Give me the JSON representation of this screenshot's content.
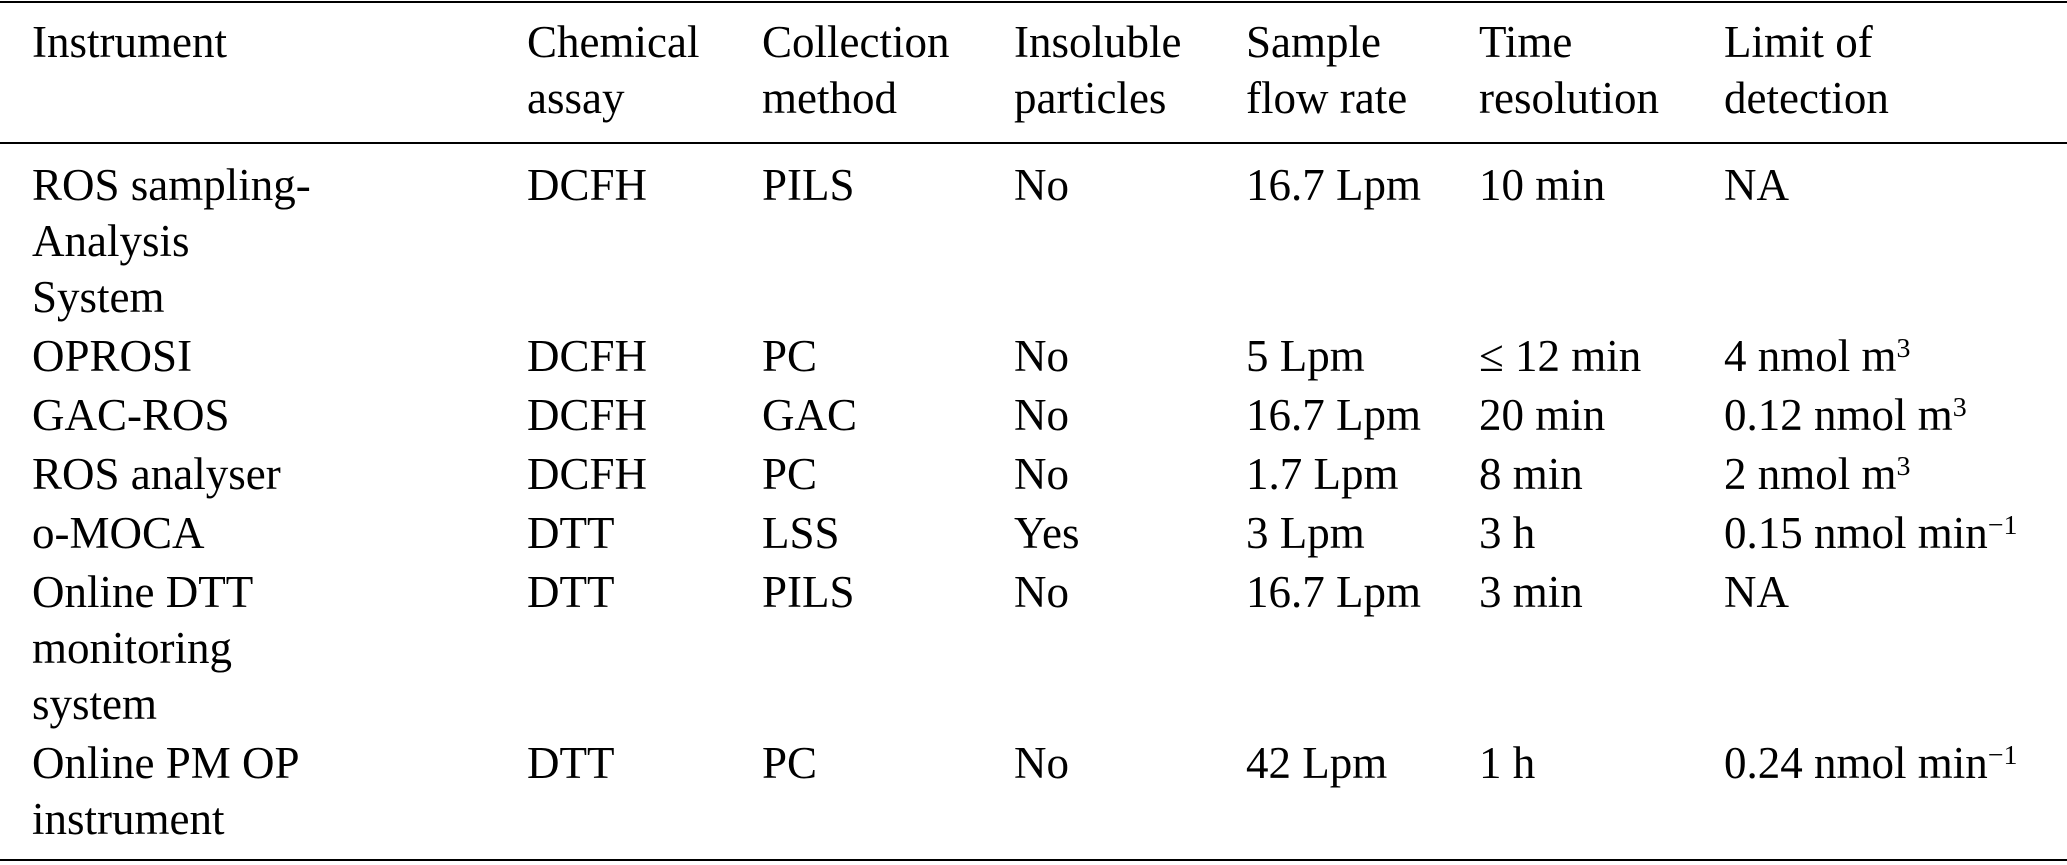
{
  "table": {
    "columns": [
      "Instrument",
      "Chemical\nassay",
      "Collection\nmethod",
      "Insoluble\nparticles",
      "Sample\nflow rate",
      "Time\nresolution",
      "Limit of\ndetection"
    ],
    "rows": [
      {
        "instrument": "ROS sampling-\nAnalysis\nSystem",
        "assay": "DCFH",
        "collection": "PILS",
        "insoluble": "No",
        "flow": "16.7 Lpm",
        "time": "10 min",
        "lod": "NA"
      },
      {
        "instrument": "OPROSI",
        "assay": "DCFH",
        "collection": "PC",
        "insoluble": "No",
        "flow": "5 Lpm",
        "time": "≤ 12 min",
        "lod": "4 nmol m",
        "lod_sup": "3"
      },
      {
        "instrument": "GAC-ROS",
        "assay": "DCFH",
        "collection": "GAC",
        "insoluble": "No",
        "flow": "16.7 Lpm",
        "time": "20 min",
        "lod": "0.12 nmol m",
        "lod_sup": "3"
      },
      {
        "instrument": "ROS analyser",
        "assay": "DCFH",
        "collection": "PC",
        "insoluble": "No",
        "flow": "1.7 Lpm",
        "time": "8 min",
        "lod": "2 nmol m",
        "lod_sup": "3"
      },
      {
        "instrument": "o-MOCA",
        "assay": "DTT",
        "collection": "LSS",
        "insoluble": "Yes",
        "flow": "3 Lpm",
        "time": "3 h",
        "lod": "0.15 nmol min",
        "lod_sup": "−1"
      },
      {
        "instrument": "Online DTT\nmonitoring\nsystem",
        "assay": "DTT",
        "collection": "PILS",
        "insoluble": "No",
        "flow": "16.7 Lpm",
        "time": "3 min",
        "lod": "NA"
      },
      {
        "instrument": "Online PM OP\ninstrument",
        "assay": "DTT",
        "collection": "PC",
        "insoluble": "No",
        "flow": "42 Lpm",
        "time": "1 h",
        "lod": "0.24 nmol min",
        "lod_sup": "−1"
      }
    ]
  }
}
